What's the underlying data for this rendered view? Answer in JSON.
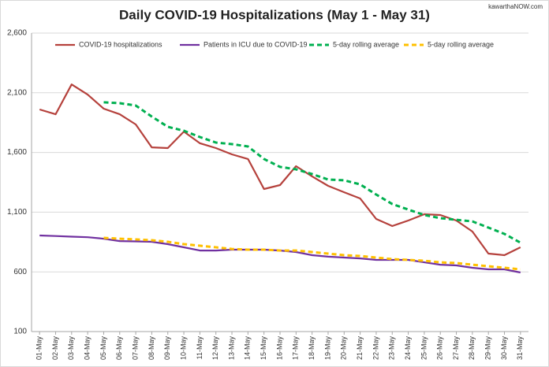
{
  "chart_data": {
    "type": "line",
    "title": "Daily COVID-19 Hospitalizations (May 1 - May 31)",
    "watermark": "kawarthaNOW.com",
    "categories": [
      "01-May",
      "02-May",
      "03-May",
      "04-May",
      "05-May",
      "06-May",
      "07-May",
      "08-May",
      "09-May",
      "10-May",
      "11-May",
      "12-May",
      "13-May",
      "14-May",
      "15-May",
      "16-May",
      "17-May",
      "18-May",
      "19-May",
      "20-May",
      "21-May",
      "22-May",
      "23-May",
      "24-May",
      "25-May",
      "26-May",
      "27-May",
      "28-May",
      "29-May",
      "30-May",
      "31-May"
    ],
    "series": [
      {
        "name": "COVID-19 hospitalizations",
        "color": "#b5413c",
        "dashed": false,
        "values": [
          1960,
          1920,
          2170,
          2085,
          1967,
          1920,
          1835,
          1643,
          1637,
          1775,
          1677,
          1637,
          1584,
          1545,
          1294,
          1327,
          1485,
          1400,
          1320,
          1267,
          1215,
          1043,
          984,
          1030,
          1083,
          1076,
          1030,
          938,
          753,
          740,
          806
        ]
      },
      {
        "name": "Patients in ICU due to COVID-19",
        "color": "#7030a0",
        "dashed": false,
        "values": [
          905,
          900,
          895,
          890,
          878,
          858,
          855,
          852,
          832,
          806,
          779,
          779,
          786,
          786,
          786,
          779,
          766,
          740,
          727,
          720,
          713,
          700,
          700,
          700,
          680,
          660,
          654,
          634,
          621,
          621,
          595
        ]
      },
      {
        "name": "5-day rolling average",
        "color": "#00b050",
        "dashed": true,
        "values": [
          null,
          null,
          null,
          null,
          2020,
          2013,
          1993,
          1901,
          1815,
          1782,
          1729,
          1683,
          1670,
          1650,
          1545,
          1479,
          1459,
          1419,
          1373,
          1367,
          1333,
          1248,
          1168,
          1122,
          1076,
          1050,
          1036,
          1023,
          971,
          918,
          845
        ]
      },
      {
        "name": "5-day rolling average",
        "color": "#ffc000",
        "dashed": true,
        "values": [
          null,
          null,
          null,
          null,
          885,
          878,
          872,
          865,
          852,
          832,
          819,
          806,
          792,
          786,
          786,
          779,
          779,
          766,
          753,
          740,
          733,
          720,
          707,
          700,
          693,
          680,
          674,
          660,
          647,
          634,
          621
        ]
      }
    ],
    "ylim": [
      100,
      2600
    ],
    "yticks": [
      100,
      600,
      {
        "value": 1100,
        "label": "1,100"
      },
      {
        "value": 1600,
        "label": "1,600"
      },
      {
        "value": 2100,
        "label": "2,100"
      },
      {
        "value": 2600,
        "label": "2,600"
      }
    ],
    "grid": true,
    "legend": "top"
  }
}
